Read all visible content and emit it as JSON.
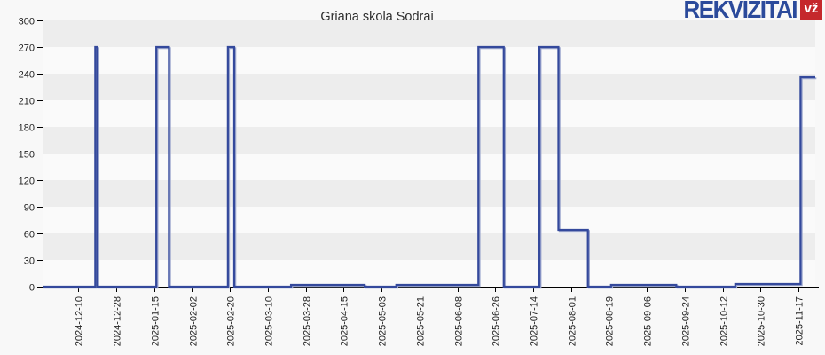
{
  "page": {
    "background": "#f8f8f8"
  },
  "logo": {
    "text": "REKVIZITAI",
    "badge": "vž",
    "text_color": "#2b4a9b",
    "badge_bg": "#c5282c",
    "badge_text_color": "#ffffff"
  },
  "chart_data": {
    "type": "line",
    "title": "Griana skola Sodrai",
    "ylim": [
      0,
      300
    ],
    "y_ticks": [
      0,
      30,
      60,
      90,
      120,
      150,
      180,
      210,
      240,
      270,
      300
    ],
    "x_tick_labels": [
      "2024-12-10",
      "2024-12-28",
      "2025-01-15",
      "2025-02-02",
      "2025-02-20",
      "2025-03-10",
      "2025-03-28",
      "2025-04-15",
      "2025-05-03",
      "2025-05-21",
      "2025-06-08",
      "2025-06-26",
      "2025-07-14",
      "2025-08-01",
      "2025-08-19",
      "2025-09-06",
      "2025-09-24",
      "2025-10-12",
      "2025-10-30",
      "2025-11-17"
    ],
    "x_axis_start": "2024-11-23",
    "x_axis_end": "2025-11-25",
    "grid_bands": {
      "dark": "#ededed",
      "light": "#fafafa"
    },
    "axis_color": "#000000",
    "tick_label_color": "#222222",
    "line_color": "#34499c",
    "line_shadow_color": "#9aa5cd",
    "steps": [
      {
        "date": "2024-11-23",
        "value": 0
      },
      {
        "date": "2024-12-18",
        "value": 270
      },
      {
        "date": "2024-12-19",
        "value": 0
      },
      {
        "date": "2025-01-16",
        "value": 270
      },
      {
        "date": "2025-01-22",
        "value": 0
      },
      {
        "date": "2025-02-19",
        "value": 270
      },
      {
        "date": "2025-02-22",
        "value": 0
      },
      {
        "date": "2025-03-21",
        "value": 2
      },
      {
        "date": "2025-04-25",
        "value": 0
      },
      {
        "date": "2025-05-10",
        "value": 2
      },
      {
        "date": "2025-06-18",
        "value": 270
      },
      {
        "date": "2025-06-30",
        "value": 0
      },
      {
        "date": "2025-07-17",
        "value": 270
      },
      {
        "date": "2025-07-26",
        "value": 64
      },
      {
        "date": "2025-08-09",
        "value": 0
      },
      {
        "date": "2025-08-20",
        "value": 2
      },
      {
        "date": "2025-09-20",
        "value": 0
      },
      {
        "date": "2025-10-18",
        "value": 3
      },
      {
        "date": "2025-11-18",
        "value": 236
      }
    ]
  }
}
